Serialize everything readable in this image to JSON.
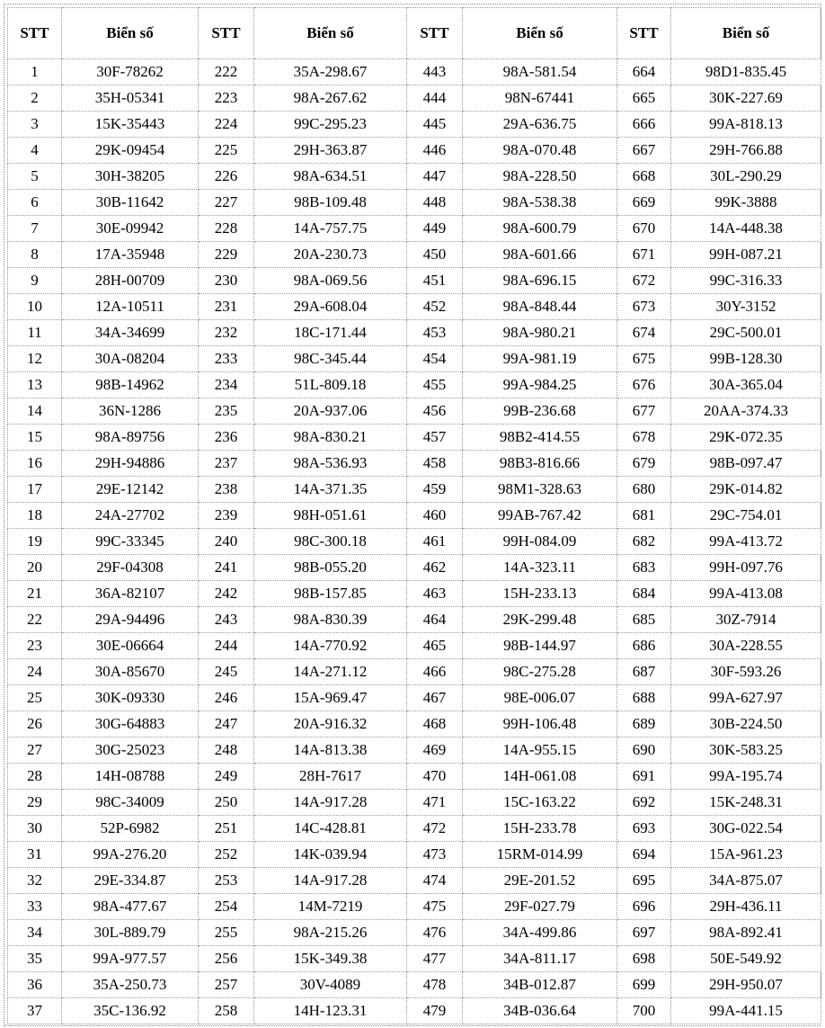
{
  "table": {
    "headers": [
      "STT",
      "Biển số",
      "STT",
      "Biển số",
      "STT",
      "Biển số",
      "STT",
      "Biển số"
    ],
    "rows": [
      [
        "1",
        "30F-78262",
        "222",
        "35A-298.67",
        "443",
        "98A-581.54",
        "664",
        "98D1-835.45"
      ],
      [
        "2",
        "35H-05341",
        "223",
        "98A-267.62",
        "444",
        "98N-67441",
        "665",
        "30K-227.69"
      ],
      [
        "3",
        "15K-35443",
        "224",
        "99C-295.23",
        "445",
        "29A-636.75",
        "666",
        "99A-818.13"
      ],
      [
        "4",
        "29K-09454",
        "225",
        "29H-363.87",
        "446",
        "98A-070.48",
        "667",
        "29H-766.88"
      ],
      [
        "5",
        "30H-38205",
        "226",
        "98A-634.51",
        "447",
        "98A-228.50",
        "668",
        "30L-290.29"
      ],
      [
        "6",
        "30B-11642",
        "227",
        "98B-109.48",
        "448",
        "98A-538.38",
        "669",
        "99K-3888"
      ],
      [
        "7",
        "30E-09942",
        "228",
        "14A-757.75",
        "449",
        "98A-600.79",
        "670",
        "14A-448.38"
      ],
      [
        "8",
        "17A-35948",
        "229",
        "20A-230.73",
        "450",
        "98A-601.66",
        "671",
        "99H-087.21"
      ],
      [
        "9",
        "28H-00709",
        "230",
        "98A-069.56",
        "451",
        "98A-696.15",
        "672",
        "99C-316.33"
      ],
      [
        "10",
        "12A-10511",
        "231",
        "29A-608.04",
        "452",
        "98A-848.44",
        "673",
        "30Y-3152"
      ],
      [
        "11",
        "34A-34699",
        "232",
        "18C-171.44",
        "453",
        "98A-980.21",
        "674",
        "29C-500.01"
      ],
      [
        "12",
        "30A-08204",
        "233",
        "98C-345.44",
        "454",
        "99A-981.19",
        "675",
        "99B-128.30"
      ],
      [
        "13",
        "98B-14962",
        "234",
        "51L-809.18",
        "455",
        "99A-984.25",
        "676",
        "30A-365.04"
      ],
      [
        "14",
        "36N-1286",
        "235",
        "20A-937.06",
        "456",
        "99B-236.68",
        "677",
        "20AA-374.33"
      ],
      [
        "15",
        "98A-89756",
        "236",
        "98A-830.21",
        "457",
        "98B2-414.55",
        "678",
        "29K-072.35"
      ],
      [
        "16",
        "29H-94886",
        "237",
        "98A-536.93",
        "458",
        "98B3-816.66",
        "679",
        "98B-097.47"
      ],
      [
        "17",
        "29E-12142",
        "238",
        "14A-371.35",
        "459",
        "98M1-328.63",
        "680",
        "29K-014.82"
      ],
      [
        "18",
        "24A-27702",
        "239",
        "98H-051.61",
        "460",
        "99AB-767.42",
        "681",
        "29C-754.01"
      ],
      [
        "19",
        "99C-33345",
        "240",
        "98C-300.18",
        "461",
        "99H-084.09",
        "682",
        "99A-413.72"
      ],
      [
        "20",
        "29F-04308",
        "241",
        "98B-055.20",
        "462",
        "14A-323.11",
        "683",
        "99H-097.76"
      ],
      [
        "21",
        "36A-82107",
        "242",
        "98B-157.85",
        "463",
        "15H-233.13",
        "684",
        "99A-413.08"
      ],
      [
        "22",
        "29A-94496",
        "243",
        "98A-830.39",
        "464",
        "29K-299.48",
        "685",
        "30Z-7914"
      ],
      [
        "23",
        "30E-06664",
        "244",
        "14A-770.92",
        "465",
        "98B-144.97",
        "686",
        "30A-228.55"
      ],
      [
        "24",
        "30A-85670",
        "245",
        "14A-271.12",
        "466",
        "98C-275.28",
        "687",
        "30F-593.26"
      ],
      [
        "25",
        "30K-09330",
        "246",
        "15A-969.47",
        "467",
        "98E-006.07",
        "688",
        "99A-627.97"
      ],
      [
        "26",
        "30G-64883",
        "247",
        "20A-916.32",
        "468",
        "99H-106.48",
        "689",
        "30B-224.50"
      ],
      [
        "27",
        "30G-25023",
        "248",
        "14A-813.38",
        "469",
        "14A-955.15",
        "690",
        "30K-583.25"
      ],
      [
        "28",
        "14H-08788",
        "249",
        "28H-7617",
        "470",
        "14H-061.08",
        "691",
        "99A-195.74"
      ],
      [
        "29",
        "98C-34009",
        "250",
        "14A-917.28",
        "471",
        "15C-163.22",
        "692",
        "15K-248.31"
      ],
      [
        "30",
        "52P-6982",
        "251",
        "14C-428.81",
        "472",
        "15H-233.78",
        "693",
        "30G-022.54"
      ],
      [
        "31",
        "99A-276.20",
        "252",
        "14K-039.94",
        "473",
        "15RM-014.99",
        "694",
        "15A-961.23"
      ],
      [
        "32",
        "29E-334.87",
        "253",
        "14A-917.28",
        "474",
        "29E-201.52",
        "695",
        "34A-875.07"
      ],
      [
        "33",
        "98A-477.67",
        "254",
        "14M-7219",
        "475",
        "29F-027.79",
        "696",
        "29H-436.11"
      ],
      [
        "34",
        "30L-889.79",
        "255",
        "98A-215.26",
        "476",
        "34A-499.86",
        "697",
        "98A-892.41"
      ],
      [
        "35",
        "99A-977.57",
        "256",
        "15K-349.38",
        "477",
        "34A-811.17",
        "698",
        "50E-549.92"
      ],
      [
        "36",
        "35A-250.73",
        "257",
        "30V-4089",
        "478",
        "34B-012.87",
        "699",
        "29H-950.07"
      ],
      [
        "37",
        "35C-136.92",
        "258",
        "14H-123.31",
        "479",
        "34B-036.64",
        "700",
        "99A-441.15"
      ]
    ]
  }
}
